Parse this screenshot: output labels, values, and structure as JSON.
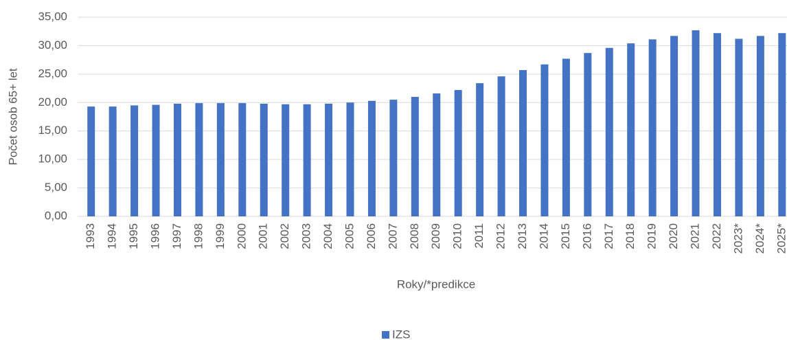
{
  "chart_data": {
    "type": "bar",
    "x_label": "Roky/*predikce",
    "y_label": "Počet osob 65+ let",
    "categories": [
      "1993",
      "1994",
      "1995",
      "1996",
      "1997",
      "1998",
      "1999",
      "2000",
      "2001",
      "2002",
      "2003",
      "2004",
      "2005",
      "2006",
      "2007",
      "2008",
      "2009",
      "2010",
      "2011",
      "2012",
      "2013",
      "2014",
      "2015",
      "2016",
      "2017",
      "2018",
      "2019",
      "2020",
      "2021",
      "2022",
      "2023*",
      "2024*",
      "2025*"
    ],
    "series": [
      {
        "name": "IZS",
        "color": "#4472c4",
        "values": [
          19.3,
          19.3,
          19.5,
          19.6,
          19.8,
          19.9,
          19.9,
          19.9,
          19.8,
          19.7,
          19.7,
          19.8,
          20.0,
          20.3,
          20.5,
          21.0,
          21.6,
          22.2,
          23.4,
          24.6,
          25.7,
          26.7,
          27.7,
          28.7,
          29.6,
          30.4,
          31.1,
          31.7,
          32.7,
          32.2,
          31.2,
          31.7,
          32.2
        ]
      }
    ],
    "ylim": [
      0,
      35
    ],
    "yticks": [
      {
        "value": 0,
        "label": "0,00"
      },
      {
        "value": 5,
        "label": "5,00"
      },
      {
        "value": 10,
        "label": "10,00"
      },
      {
        "value": 15,
        "label": "15,00"
      },
      {
        "value": 20,
        "label": "20,00"
      },
      {
        "value": 25,
        "label": "25,00"
      },
      {
        "value": 30,
        "label": "30,00"
      },
      {
        "value": 35,
        "label": "35,00"
      }
    ],
    "grid": true
  }
}
